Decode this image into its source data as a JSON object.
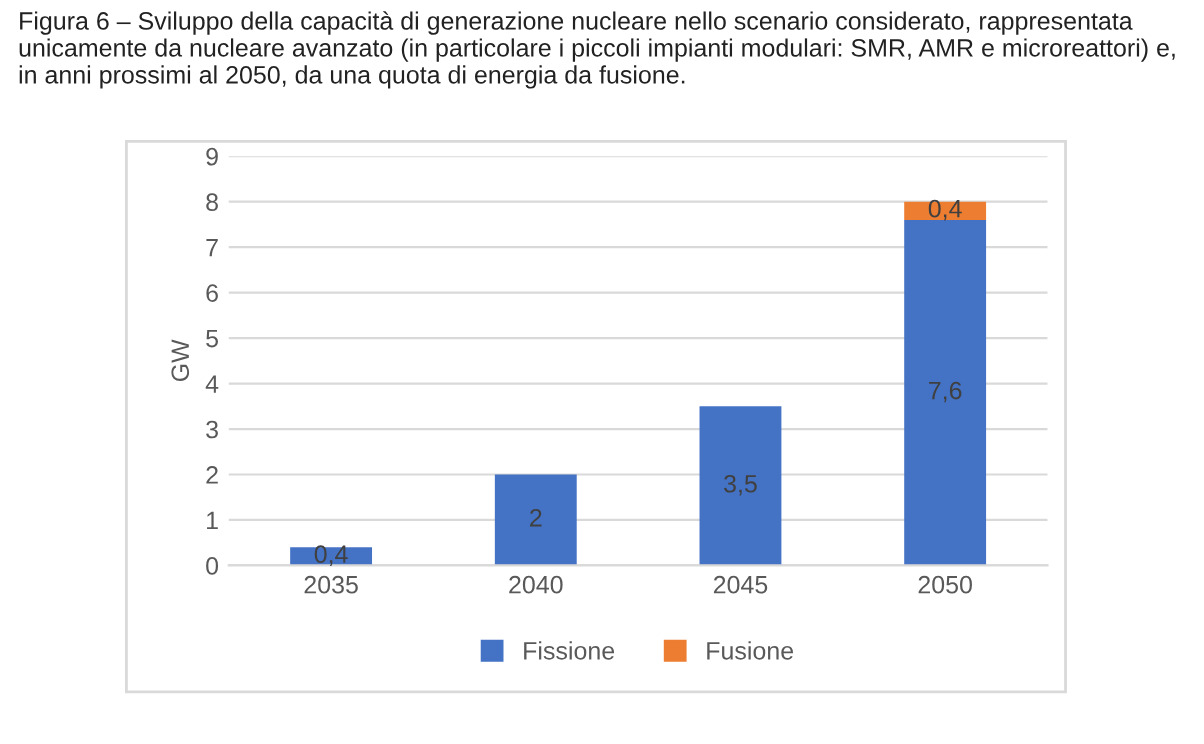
{
  "chart_data": {
    "type": "bar",
    "stacked": true,
    "title": "Figura 6 – Sviluppo della capacità di generazione nucleare nello scenario considerato, rappresentata unicamente da nucleare avanzato (in particolare i piccoli impianti modulari: SMR, AMR e microreattori) e, in anni prossimi al 2050, da una quota di energia da fusione.",
    "ylabel": "GW",
    "categories": [
      "2035",
      "2040",
      "2045",
      "2050"
    ],
    "series": [
      {
        "name": "Fissione",
        "color": "#4472c4",
        "values": [
          0.4,
          2,
          3.5,
          7.6
        ],
        "value_labels": [
          "0,4",
          "2",
          "3,5",
          "7,6"
        ]
      },
      {
        "name": "Fusione",
        "color": "#ed7d31",
        "values": [
          null,
          null,
          null,
          0.4
        ],
        "value_labels": [
          null,
          null,
          null,
          "0,4"
        ]
      }
    ],
    "ylim": [
      0,
      9
    ],
    "yticks": [
      0,
      1,
      2,
      3,
      4,
      5,
      6,
      7,
      8,
      9
    ],
    "grid": "y",
    "legend": "bottom"
  }
}
